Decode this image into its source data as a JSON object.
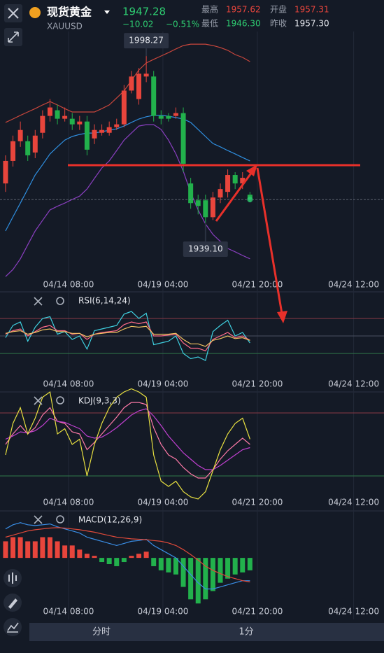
{
  "header": {
    "name": "现货黄金",
    "symbol": "XAUUSD",
    "price": "1947.28",
    "change": "−10.02",
    "change_pct": "−0.51%",
    "high_label": "最高",
    "high": "1957.62",
    "open_label": "开盘",
    "open": "1957.31",
    "low_label": "最低",
    "low": "1946.30",
    "prev_label": "昨收",
    "prev": "1957.30"
  },
  "tabs": [
    "分时",
    "1分"
  ],
  "chart_data": [
    {
      "type": "candlestick",
      "xlim": [
        -0.75,
        51.1
      ],
      "xticks": [
        {
          "value": 8.5,
          "label": "04/14 08:00"
        },
        {
          "value": 21.25,
          "label": "04/19 04:00"
        },
        {
          "value": 34,
          "label": "04/21 20:00"
        },
        {
          "value": 47,
          "label": "04/24 12:00"
        }
      ],
      "ylim": [
        1918.7,
        2007
      ],
      "up_color": "#e8453c",
      "down_color": "#22b14c",
      "open": [
        1953,
        1961,
        1968,
        1968,
        1964,
        1971,
        1977,
        1979,
        1976,
        1976,
        1974,
        1975,
        1969,
        1971,
        1971,
        1973,
        1974,
        1986,
        1983,
        1991,
        1991,
        1977,
        1977,
        1977,
        1978,
        1953,
        1947,
        1947,
        1941,
        1948,
        1950,
        1956,
        1953,
        1949
      ],
      "high": [
        1963,
        1970,
        1975,
        1970,
        1972,
        1979,
        1983,
        1981,
        1980,
        1978,
        1977,
        1977,
        1974,
        1974,
        1975,
        1976,
        1988,
        1993,
        1994,
        1998.27,
        1993,
        1979,
        1978,
        1980,
        1980,
        1955,
        1949,
        1949,
        1950,
        1953,
        1958,
        1957,
        1957,
        1950
      ],
      "low": [
        1950,
        1959,
        1966,
        1961,
        1962,
        1969,
        1975,
        1974,
        1975,
        1972,
        1972,
        1963,
        1967,
        1970,
        1970,
        1972,
        1973,
        1985,
        1981,
        1989,
        1975,
        1974,
        1975,
        1976,
        1957,
        1944,
        1942,
        1939.1,
        1940,
        1946,
        1948,
        1951,
        1951,
        1946.3
      ],
      "close": [
        1961,
        1968,
        1972,
        1963,
        1970,
        1977,
        1980,
        1976,
        1977,
        1974,
        1975,
        1965,
        1972,
        1972,
        1973,
        1974,
        1986,
        1991,
        1992,
        1992,
        1977,
        1976,
        1976,
        1978,
        1960,
        1946,
        1945,
        1941,
        1948,
        1951,
        1956,
        1953,
        1955,
        1947.28
      ],
      "series": [
        {
          "color": "#c8463c",
          "values": [
            1974.7,
            1975.9,
            1977.2,
            1978.4,
            1979.6,
            1980.9,
            1982.1,
            1980.9,
            1979.6,
            1978.4,
            1978.4,
            1978.4,
            1978.4,
            1979.6,
            1980.9,
            1983.4,
            1985.9,
            1989.6,
            1993.3,
            1995.8,
            1997.1,
            1998.3,
            1999.5,
            2000.8,
            2002.0,
            2002.5,
            2002.5,
            2002.5,
            2002.0,
            2001.3,
            2000.3,
            1998.8,
            1997.8,
            1996.3
          ]
        },
        {
          "color": "#2f8fe0",
          "values": [
            1936.1,
            1941.1,
            1946.0,
            1951.0,
            1956.0,
            1959.7,
            1963.5,
            1966.0,
            1968.4,
            1969.7,
            1970.4,
            1970.9,
            1970.9,
            1971.4,
            1971.9,
            1972.4,
            1973.4,
            1974.7,
            1975.9,
            1976.7,
            1977.2,
            1977.2,
            1976.9,
            1976.4,
            1975.9,
            1974.7,
            1972.2,
            1969.7,
            1967.2,
            1966.0,
            1964.7,
            1963.5,
            1962.2,
            1961.0
          ]
        },
        {
          "color": "#8a3fc0",
          "values": [
            1919.9,
            1922.4,
            1926.2,
            1931.2,
            1936.1,
            1939.9,
            1943.6,
            1944.9,
            1946.0,
            1947.3,
            1948.5,
            1951.0,
            1954.8,
            1958.5,
            1961.0,
            1964.7,
            1968.4,
            1970.9,
            1973.4,
            1973.9,
            1973.9,
            1972.2,
            1968.4,
            1963.5,
            1957.3,
            1949.8,
            1943.6,
            1938.6,
            1934.9,
            1932.4,
            1929.9,
            1928.7,
            1927.4,
            1926.2
          ]
        }
      ],
      "annotations": [
        {
          "value": 1998.27,
          "label": "1998.27"
        },
        {
          "value": 1939.1,
          "label": "1939.10"
        }
      ]
    },
    {
      "type": "line",
      "title": "RSI(6,14,24)",
      "xlim": [
        -0.75,
        51.1
      ],
      "xticks": [
        {
          "value": 8.5,
          "label": "04/14 08:00"
        },
        {
          "value": 21.25,
          "label": "04/19 04:00"
        },
        {
          "value": 34,
          "label": "04/21 20:00"
        },
        {
          "value": 47,
          "label": "04/24 12:00"
        }
      ],
      "ylim": [
        0,
        100
      ],
      "levels": [
        70,
        50,
        30
      ],
      "level_colors": [
        "#8a3a46",
        "#4a5060",
        "#2f7a4a"
      ],
      "series": [
        {
          "color": "#3fd0e0",
          "values": [
            48,
            62,
            66,
            44,
            60,
            70,
            72,
            52,
            55,
            46,
            50,
            35,
            56,
            58,
            60,
            62,
            75,
            78,
            70,
            76,
            40,
            42,
            44,
            50,
            30,
            24,
            26,
            22,
            55,
            62,
            68,
            50,
            54,
            42
          ]
        },
        {
          "color": "#ff6b8a",
          "values": [
            52,
            56,
            58,
            50,
            55,
            60,
            62,
            56,
            56,
            52,
            53,
            46,
            52,
            54,
            55,
            56,
            63,
            66,
            64,
            66,
            50,
            50,
            51,
            52,
            42,
            36,
            36,
            33,
            46,
            50,
            54,
            48,
            50,
            45
          ]
        },
        {
          "color": "#f0c060",
          "values": [
            53,
            55,
            56,
            52,
            54,
            57,
            58,
            55,
            55,
            53,
            53,
            49,
            52,
            53,
            54,
            54,
            58,
            61,
            60,
            61,
            52,
            52,
            52,
            53,
            46,
            41,
            41,
            38,
            45,
            47,
            50,
            47,
            48,
            45
          ]
        }
      ]
    },
    {
      "type": "line",
      "title": "KDJ(9,3,3)",
      "xlim": [
        -0.75,
        51.1
      ],
      "xticks": [
        {
          "value": 8.5,
          "label": "04/14 08:00"
        },
        {
          "value": 21.25,
          "label": "04/19 04:00"
        },
        {
          "value": 34,
          "label": "04/21 20:00"
        },
        {
          "value": 47,
          "label": "04/24 12:00"
        }
      ],
      "ylim": [
        0,
        100
      ],
      "levels": [
        80,
        20
      ],
      "level_colors": [
        "#8a3a46",
        "#2f7a4a"
      ],
      "series": [
        {
          "color": "#ff7aa8",
          "values": [
            50,
            60,
            68,
            60,
            66,
            78,
            85,
            72,
            70,
            62,
            60,
            45,
            52,
            60,
            68,
            76,
            85,
            90,
            90,
            88,
            66,
            50,
            40,
            36,
            28,
            22,
            18,
            18,
            26,
            36,
            44,
            50,
            56,
            50
          ]
        },
        {
          "color": "#c040d0",
          "values": [
            55,
            58,
            62,
            61,
            63,
            68,
            75,
            72,
            71,
            68,
            65,
            58,
            56,
            57,
            61,
            66,
            72,
            78,
            82,
            84,
            77,
            68,
            58,
            50,
            42,
            36,
            30,
            26,
            26,
            30,
            35,
            40,
            45,
            47
          ]
        },
        {
          "color": "#e8e040",
          "values": [
            40,
            70,
            85,
            60,
            75,
            95,
            100,
            60,
            65,
            50,
            55,
            20,
            50,
            70,
            85,
            95,
            100,
            103,
            100,
            95,
            40,
            15,
            10,
            15,
            5,
            0,
            -2,
            5,
            25,
            45,
            60,
            70,
            75,
            55
          ]
        }
      ]
    },
    {
      "type": "macd",
      "title": "MACD(12,26,9)",
      "xlim": [
        -0.75,
        51.1
      ],
      "xticks": [
        {
          "value": 8.5,
          "label": "04/14 08:00"
        },
        {
          "value": 21.25,
          "label": "04/19 04:00"
        },
        {
          "value": 34,
          "label": "04/21 20:00"
        },
        {
          "value": 47,
          "label": "04/24 12:00"
        }
      ],
      "ylim": [
        -14,
        11
      ],
      "up_color": "#e8453c",
      "down_color": "#22b14c",
      "values": [
        4,
        5,
        5,
        4,
        4,
        5,
        5,
        4,
        3,
        3,
        2,
        1,
        0.5,
        -1,
        -1.5,
        -2,
        -1,
        0.5,
        1,
        1.5,
        -2,
        -3,
        -3.5,
        -4,
        -7,
        -10,
        -11,
        -10,
        -8,
        -6,
        -5,
        -4,
        -3.5,
        -3
      ],
      "series": [
        {
          "color": "#3a8ee6",
          "values": [
            7,
            8,
            8.5,
            8,
            7.8,
            8,
            8.2,
            7.5,
            7,
            6.5,
            6,
            5,
            4.5,
            4,
            3.5,
            3,
            3.5,
            4,
            4.2,
            4.5,
            3,
            2,
            1,
            0,
            -2,
            -4,
            -6,
            -7.5,
            -7.5,
            -7,
            -6.5,
            -6,
            -5.5,
            -5.5
          ]
        },
        {
          "color": "#e04a3a",
          "values": [
            5,
            5.5,
            6,
            6.5,
            6.8,
            7,
            7.2,
            7.3,
            7.2,
            7,
            6.8,
            6.5,
            6.2,
            5.8,
            5.4,
            5,
            4.8,
            4.6,
            4.5,
            4.4,
            4.2,
            4,
            3.6,
            3,
            2,
            0.8,
            -0.5,
            -2,
            -3,
            -3.8,
            -4.5,
            -5,
            -5.5,
            -5.8
          ]
        }
      ]
    }
  ]
}
